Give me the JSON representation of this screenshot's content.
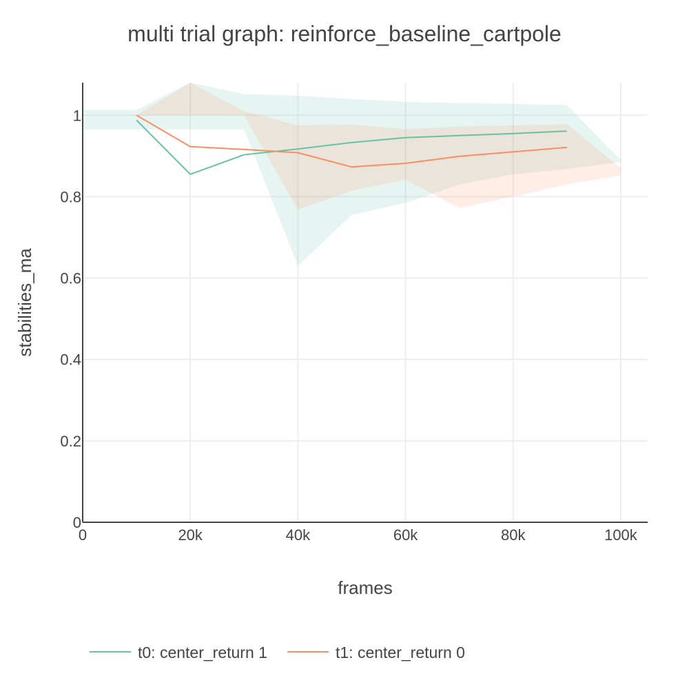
{
  "chart_data": {
    "type": "line",
    "title": "multi trial graph: reinforce_baseline_cartpole",
    "xlabel": "frames",
    "ylabel": "stabilities_ma",
    "xlim": [
      0,
      105000
    ],
    "ylim": [
      0,
      1.08
    ],
    "x_ticks": [
      0,
      20000,
      40000,
      60000,
      80000,
      100000
    ],
    "x_tick_labels": [
      "0",
      "20k",
      "40k",
      "60k",
      "80k",
      "100k"
    ],
    "y_ticks": [
      0,
      0.2,
      0.4,
      0.6,
      0.8,
      1
    ],
    "y_tick_labels": [
      "0",
      "0.2",
      "0.4",
      "0.6",
      "0.8",
      "1"
    ],
    "grid": true,
    "legend_position": "bottom",
    "series": [
      {
        "name": "t0: center_return 1",
        "color": "#66c2a5",
        "fill_color": "rgba(102,194,165,0.16)",
        "x": [
          10000,
          20000,
          30000,
          40000,
          50000,
          60000,
          70000,
          80000,
          90000
        ],
        "values": [
          0.988,
          0.855,
          0.903,
          0.917,
          0.933,
          0.945,
          0.95,
          0.955,
          0.961
        ],
        "band": {
          "x": [
            0,
            10000,
            20000,
            30000,
            40000,
            50000,
            60000,
            70000,
            80000,
            90000,
            100000
          ],
          "upper": [
            1.013,
            1.013,
            1.08,
            1.052,
            1.048,
            1.04,
            1.033,
            1.03,
            1.028,
            1.025,
            0.89
          ],
          "lower": [
            0.965,
            0.965,
            0.965,
            0.965,
            0.63,
            0.755,
            0.785,
            0.83,
            0.855,
            0.868,
            0.885
          ]
        }
      },
      {
        "name": "t1: center_return 0",
        "color": "#fc8d62",
        "fill_color": "rgba(252,141,98,0.16)",
        "x": [
          10000,
          20000,
          30000,
          40000,
          50000,
          60000,
          70000,
          80000,
          90000
        ],
        "values": [
          1.0,
          0.923,
          0.916,
          0.908,
          0.873,
          0.882,
          0.899,
          0.91,
          0.921
        ],
        "band": {
          "x": [
            10000,
            20000,
            30000,
            40000,
            50000,
            60000,
            70000,
            80000,
            90000,
            100000
          ],
          "upper": [
            1.0,
            1.08,
            1.01,
            0.975,
            0.977,
            0.966,
            0.972,
            0.975,
            0.978,
            0.87
          ],
          "lower": [
            1.0,
            1.0,
            1.0,
            0.768,
            0.815,
            0.842,
            0.772,
            0.8,
            0.83,
            0.852
          ]
        }
      }
    ]
  }
}
